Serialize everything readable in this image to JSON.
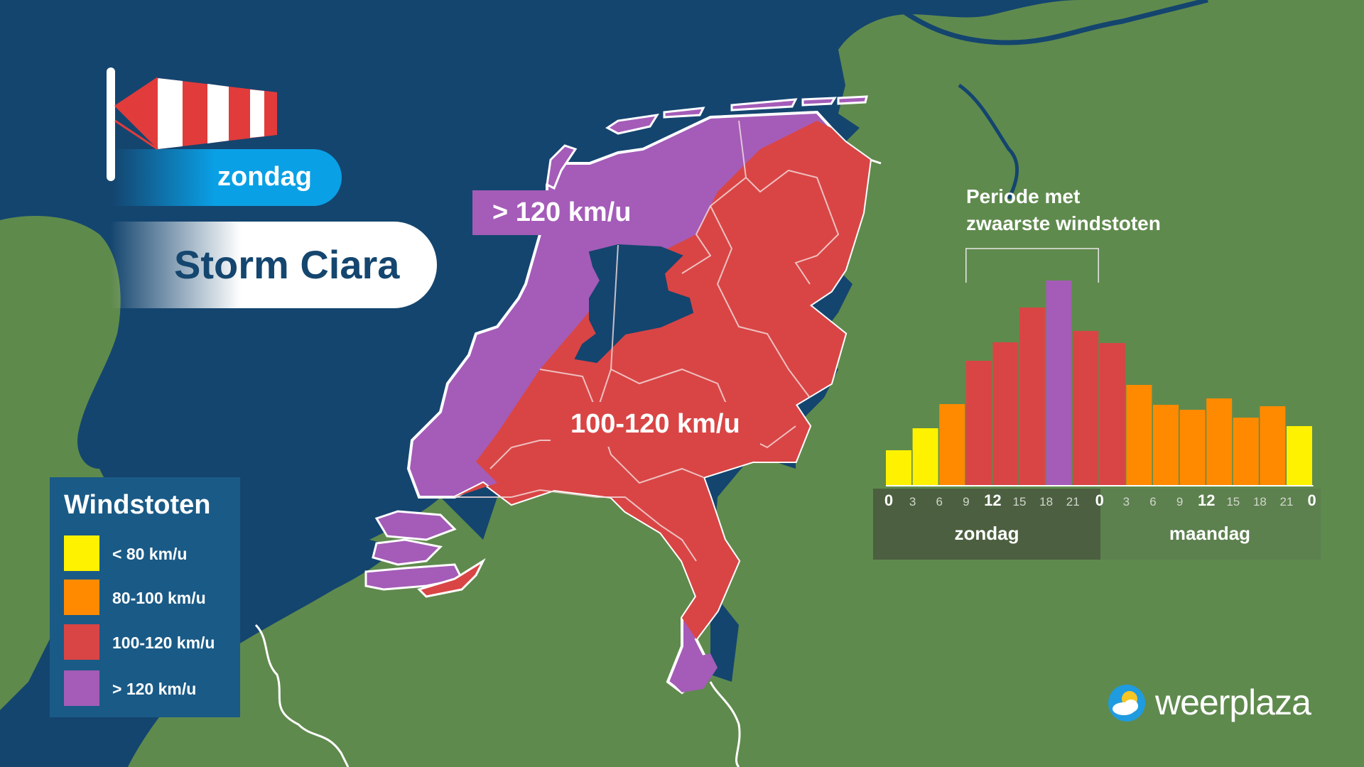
{
  "header": {
    "day": "zondag",
    "title": "Storm Ciara"
  },
  "map_labels": {
    "purple_zone": "> 120 km/u",
    "red_zone": "100-120 km/u"
  },
  "legend": {
    "title": "Windstoten",
    "items": [
      {
        "label": "< 80 km/u",
        "color": "#fff200"
      },
      {
        "label": "80-100 km/u",
        "color": "#ff8a00"
      },
      {
        "label": "100-120 km/u",
        "color": "#d94545"
      },
      {
        "label": "> 120 km/u",
        "color": "#a45cb8"
      }
    ]
  },
  "colors": {
    "sea": "#14456f",
    "land": "#5f8a4d",
    "red_zone": "#d94545",
    "purple_zone": "#a45cb8",
    "day_pill": "#0aa0e6",
    "title_text": "#14466f",
    "legend_bg": "#1a5a86"
  },
  "chart_title": {
    "line1": "Periode met",
    "line2": "zwaarste windstoten"
  },
  "chart_data": {
    "type": "bar",
    "title": "Periode met zwaarste windstoten",
    "x_tick_labels": [
      "0",
      "3",
      "6",
      "9",
      "12",
      "15",
      "18",
      "21",
      "0",
      "3",
      "6",
      "9",
      "12",
      "15",
      "18",
      "21",
      "0"
    ],
    "major_ticks": [
      "0",
      "12"
    ],
    "day_labels": [
      "zondag",
      "maandag"
    ],
    "categories_hours": [
      0,
      3,
      6,
      9,
      12,
      15,
      18,
      21,
      0,
      3,
      6,
      9,
      12,
      15,
      18,
      21,
      0
    ],
    "values": [
      50,
      81,
      115,
      176,
      202,
      251,
      289,
      218,
      201,
      142,
      114,
      107,
      123,
      96,
      112,
      84
    ],
    "value_units": "relative gust strength (no axis printed)",
    "bar_colors": [
      "#fff200",
      "#fff200",
      "#ff8a00",
      "#d94545",
      "#d94545",
      "#d94545",
      "#a45cb8",
      "#d94545",
      "#d94545",
      "#ff8a00",
      "#ff8a00",
      "#ff8a00",
      "#ff8a00",
      "#ff8a00",
      "#ff8a00",
      "#fff200"
    ],
    "highlight_bracket": "zondag 9–21",
    "ylim": [
      0,
      300
    ]
  },
  "logo": {
    "name": "weerplaza"
  }
}
